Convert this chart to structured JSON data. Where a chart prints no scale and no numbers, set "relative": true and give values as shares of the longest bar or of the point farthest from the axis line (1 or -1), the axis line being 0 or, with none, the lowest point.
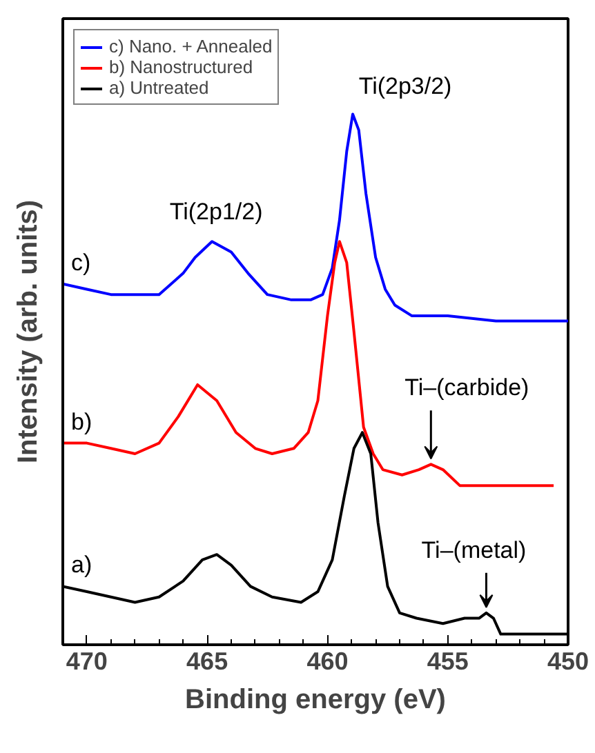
{
  "chart_data": {
    "type": "line",
    "relative": true,
    "xlabel": "Binding energy (eV)",
    "ylabel": "Intensity (arb. units)",
    "xlim": [
      471,
      450
    ],
    "xticks": [
      470,
      465,
      460,
      455,
      450
    ],
    "legend": "top left",
    "grid": false,
    "marker": "none",
    "line_style": "solid",
    "series": [
      {
        "name": "c) Nano. + Annealed",
        "color": "#0000ff",
        "x": [
          471,
          470,
          469,
          468,
          467,
          466,
          465.5,
          464.8,
          464,
          463.3,
          462.5,
          461.5,
          460.7,
          460.2,
          459.8,
          459.5,
          459.2,
          458.95,
          458.7,
          458.4,
          458.0,
          457.6,
          457.2,
          456.5,
          455,
          453,
          451,
          450
        ],
        "values": [
          0.68,
          0.67,
          0.66,
          0.66,
          0.66,
          0.7,
          0.73,
          0.76,
          0.74,
          0.7,
          0.66,
          0.65,
          0.65,
          0.66,
          0.71,
          0.8,
          0.93,
          1.0,
          0.97,
          0.85,
          0.73,
          0.67,
          0.64,
          0.62,
          0.62,
          0.61,
          0.61,
          0.61
        ]
      },
      {
        "name": "b) Nanostructured",
        "color": "#ff0000",
        "x": [
          471,
          470,
          469,
          468,
          467,
          466.2,
          465.4,
          464.6,
          463.8,
          463,
          462.3,
          461.4,
          460.8,
          460.4,
          460.0,
          459.7,
          459.5,
          459.2,
          458.9,
          458.5,
          458.1,
          457.7,
          456.9,
          456.2,
          455.7,
          455.2,
          454.5,
          453.5,
          452,
          450.6
        ],
        "values": [
          0.38,
          0.38,
          0.37,
          0.36,
          0.38,
          0.43,
          0.49,
          0.46,
          0.4,
          0.37,
          0.36,
          0.37,
          0.4,
          0.46,
          0.62,
          0.72,
          0.76,
          0.72,
          0.59,
          0.41,
          0.36,
          0.33,
          0.32,
          0.33,
          0.34,
          0.33,
          0.3,
          0.3,
          0.3,
          0.3
        ]
      },
      {
        "name": "a) Untreated",
        "color": "#000000",
        "x": [
          471,
          470,
          469,
          468,
          467,
          466,
          465.2,
          464.6,
          464,
          463.2,
          462.3,
          461.1,
          460.4,
          459.8,
          459.3,
          458.9,
          458.55,
          458.2,
          457.9,
          457.5,
          457.0,
          456.3,
          455.2,
          454.3,
          453.7,
          453.4,
          453.1,
          452.8,
          452.3,
          450
        ],
        "values": [
          0.11,
          0.1,
          0.09,
          0.08,
          0.09,
          0.12,
          0.16,
          0.17,
          0.15,
          0.11,
          0.09,
          0.08,
          0.1,
          0.16,
          0.28,
          0.37,
          0.4,
          0.36,
          0.23,
          0.11,
          0.06,
          0.05,
          0.04,
          0.05,
          0.05,
          0.06,
          0.05,
          0.02,
          0.02,
          0.02
        ]
      }
    ],
    "annotations": [
      {
        "text": "Ti(2p1/2)",
        "x": 464.8,
        "y": 0.76
      },
      {
        "text": "Ti(2p3/2)",
        "x": 458.95,
        "y": 1.0
      },
      {
        "text": "Ti–(carbide)",
        "x": 455.7,
        "y": 0.34
      },
      {
        "text": "Ti–(metal)",
        "x": 453.4,
        "y": 0.06
      },
      "c)",
      "b)",
      "a)"
    ]
  }
}
